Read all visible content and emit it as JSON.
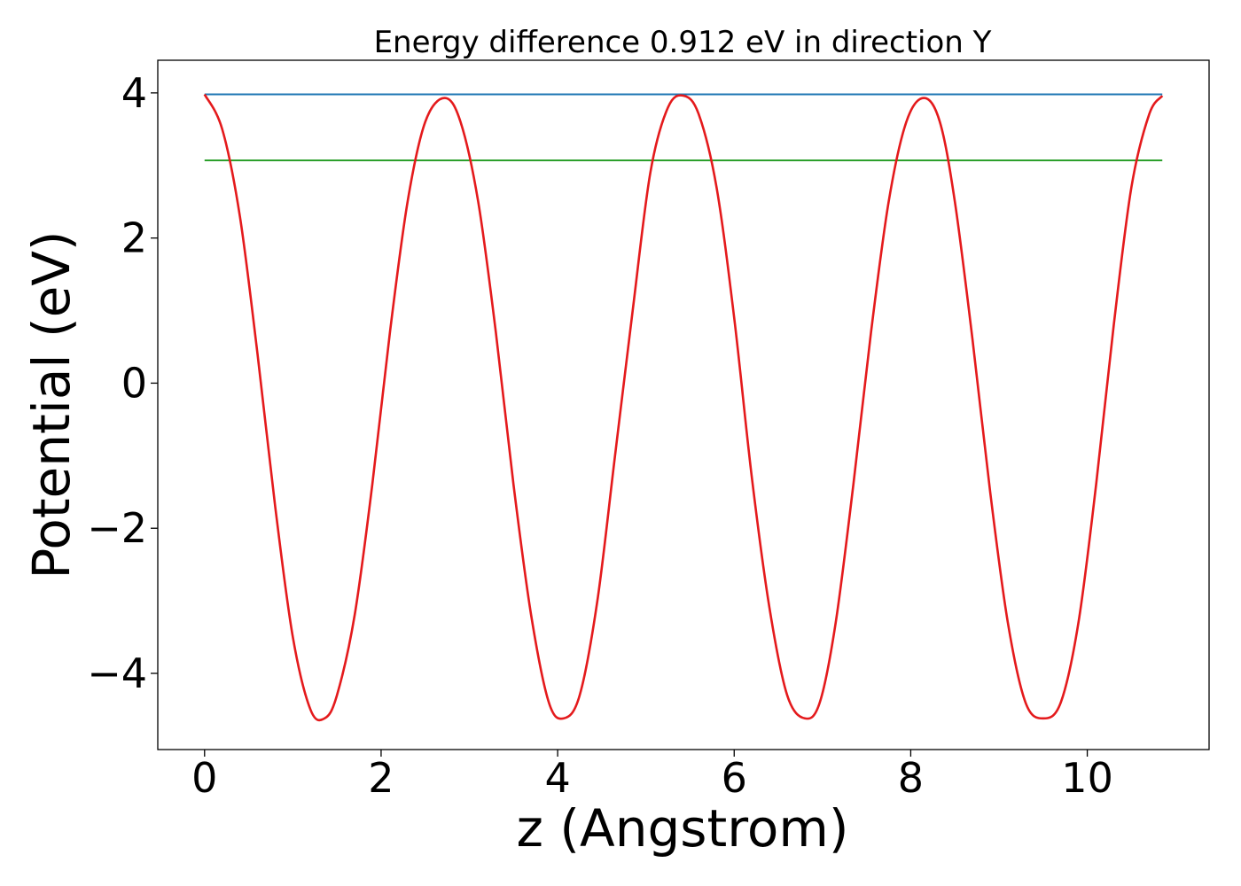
{
  "chart_data": {
    "type": "line",
    "title": "Energy difference 0.912 eV in direction Y",
    "xlabel": "z (Angstrom)",
    "ylabel": "Potential (eV)",
    "xlim": [
      -0.53,
      11.38
    ],
    "ylim": [
      -5.05,
      4.45
    ],
    "xticks": [
      0,
      2,
      4,
      6,
      8,
      10
    ],
    "xtick_labels": [
      "0",
      "2",
      "4",
      "6",
      "8",
      "10"
    ],
    "yticks": [
      -4,
      -2,
      0,
      2,
      4
    ],
    "ytick_labels": [
      "−4",
      "−2",
      "0",
      "2",
      "4"
    ],
    "grid": false,
    "series": [
      {
        "color": "#1f77b4",
        "x": [
          0,
          10.85
        ],
        "y": [
          3.98,
          3.98
        ]
      },
      {
        "color": "#2ca02c",
        "x": [
          0,
          10.85
        ],
        "y": [
          3.07,
          3.07
        ]
      },
      {
        "color": "#e41a1c",
        "x": [
          0,
          0.2,
          0.4,
          0.6,
          0.8,
          1.0,
          1.2,
          1.36,
          1.5,
          1.7,
          1.9,
          2.1,
          2.3,
          2.5,
          2.72,
          2.9,
          3.1,
          3.3,
          3.5,
          3.7,
          3.9,
          4.07,
          4.25,
          4.45,
          4.65,
          4.85,
          5.05,
          5.25,
          5.43,
          5.6,
          5.8,
          6.0,
          6.2,
          6.4,
          6.6,
          6.8,
          6.97,
          7.15,
          7.35,
          7.55,
          7.75,
          7.95,
          8.15,
          8.33,
          8.5,
          8.7,
          8.9,
          9.1,
          9.3,
          9.5,
          9.7,
          9.9,
          10.1,
          10.3,
          10.5,
          10.7,
          10.85
        ],
        "y": [
          3.98,
          3.5,
          2.3,
          0.4,
          -1.7,
          -3.5,
          -4.5,
          -4.62,
          -4.3,
          -3.2,
          -1.4,
          0.7,
          2.5,
          3.6,
          3.93,
          3.6,
          2.5,
          0.7,
          -1.4,
          -3.2,
          -4.4,
          -4.62,
          -4.3,
          -3.0,
          -1.0,
          1.0,
          2.9,
          3.8,
          3.96,
          3.7,
          2.7,
          0.9,
          -1.3,
          -3.1,
          -4.3,
          -4.62,
          -4.4,
          -3.3,
          -1.4,
          0.7,
          2.5,
          3.6,
          3.93,
          3.6,
          2.5,
          0.6,
          -1.5,
          -3.3,
          -4.4,
          -4.62,
          -4.4,
          -3.3,
          -1.4,
          0.8,
          2.7,
          3.7,
          3.96
        ]
      }
    ]
  }
}
